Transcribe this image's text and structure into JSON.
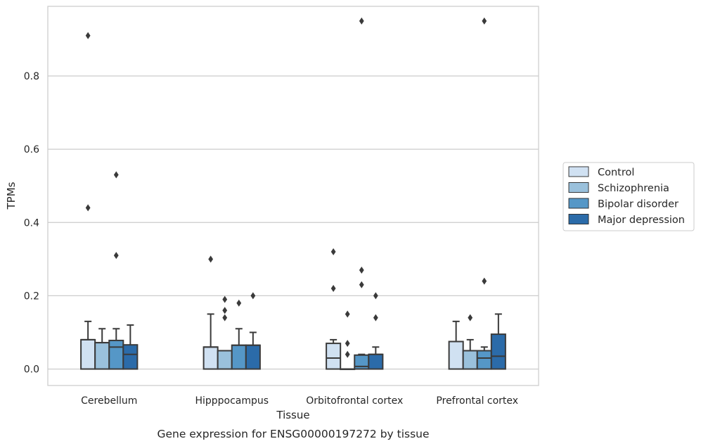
{
  "chart_data": {
    "type": "box",
    "xlabel": "Tissue",
    "ylabel": "TPMs",
    "caption": "Gene expression for ENSG00000197272 by tissue",
    "ylim": [
      -0.045,
      0.99
    ],
    "yticks": [
      "0.0",
      "0.2",
      "0.4",
      "0.6",
      "0.8"
    ],
    "grid": "horizontal",
    "legend_position": "center-right",
    "categories": [
      "Cerebellum",
      "Hipppocampus",
      "Orbitofrontal cortex",
      "Prefrontal cortex"
    ],
    "series": [
      {
        "name": "Control",
        "color": "#d0e1f2",
        "boxes": [
          {
            "q1": 0,
            "median": 0.08,
            "q3": 0.08,
            "whisker_low": 0,
            "whisker_high": 0.13,
            "outliers": [
              0.44,
              0.91
            ]
          },
          {
            "q1": 0,
            "median": 0.06,
            "q3": 0.06,
            "whisker_low": 0,
            "whisker_high": 0.15,
            "outliers": [
              0.3
            ]
          },
          {
            "q1": 0,
            "median": 0.03,
            "q3": 0.07,
            "whisker_low": 0,
            "whisker_high": 0.08,
            "outliers": [
              0.22,
              0.32
            ]
          },
          {
            "q1": 0,
            "median": 0.075,
            "q3": 0.075,
            "whisker_low": 0,
            "whisker_high": 0.13,
            "outliers": []
          }
        ]
      },
      {
        "name": "Schizophrenia",
        "color": "#9ac1dc",
        "boxes": [
          {
            "q1": 0,
            "median": 0.072,
            "q3": 0.072,
            "whisker_low": 0,
            "whisker_high": 0.11,
            "outliers": []
          },
          {
            "q1": 0,
            "median": 0.05,
            "q3": 0.05,
            "whisker_low": 0,
            "whisker_high": 0.05,
            "outliers": [
              0.14,
              0.16,
              0.19
            ]
          },
          {
            "q1": 0,
            "median": 0,
            "q3": 0,
            "whisker_low": 0,
            "whisker_high": 0,
            "outliers": [
              0.04,
              0.07,
              0.15
            ]
          },
          {
            "q1": 0,
            "median": 0.05,
            "q3": 0.05,
            "whisker_low": 0,
            "whisker_high": 0.08,
            "outliers": [
              0.14
            ]
          }
        ]
      },
      {
        "name": "Bipolar disorder",
        "color": "#5597c7",
        "boxes": [
          {
            "q1": 0,
            "median": 0.06,
            "q3": 0.078,
            "whisker_low": 0,
            "whisker_high": 0.11,
            "outliers": [
              0.31,
              0.53
            ]
          },
          {
            "q1": 0,
            "median": 0.065,
            "q3": 0.065,
            "whisker_low": 0,
            "whisker_high": 0.11,
            "outliers": [
              0.18
            ]
          },
          {
            "q1": 0,
            "median": 0.007,
            "q3": 0.038,
            "whisker_low": 0,
            "whisker_high": 0.04,
            "outliers": [
              0.23,
              0.27,
              0.95
            ]
          },
          {
            "q1": 0,
            "median": 0.03,
            "q3": 0.05,
            "whisker_low": 0,
            "whisker_high": 0.06,
            "outliers": [
              0.24,
              0.95
            ]
          }
        ]
      },
      {
        "name": "Major depression",
        "color": "#2b6ba9",
        "boxes": [
          {
            "q1": 0,
            "median": 0.04,
            "q3": 0.066,
            "whisker_low": 0,
            "whisker_high": 0.12,
            "outliers": []
          },
          {
            "q1": 0,
            "median": 0.065,
            "q3": 0.065,
            "whisker_low": 0,
            "whisker_high": 0.1,
            "outliers": [
              0.2
            ]
          },
          {
            "q1": 0,
            "median": 0.04,
            "q3": 0.04,
            "whisker_low": 0,
            "whisker_high": 0.06,
            "outliers": [
              0.14,
              0.2
            ]
          },
          {
            "q1": 0,
            "median": 0.035,
            "q3": 0.095,
            "whisker_low": 0,
            "whisker_high": 0.15,
            "outliers": []
          }
        ]
      }
    ]
  }
}
